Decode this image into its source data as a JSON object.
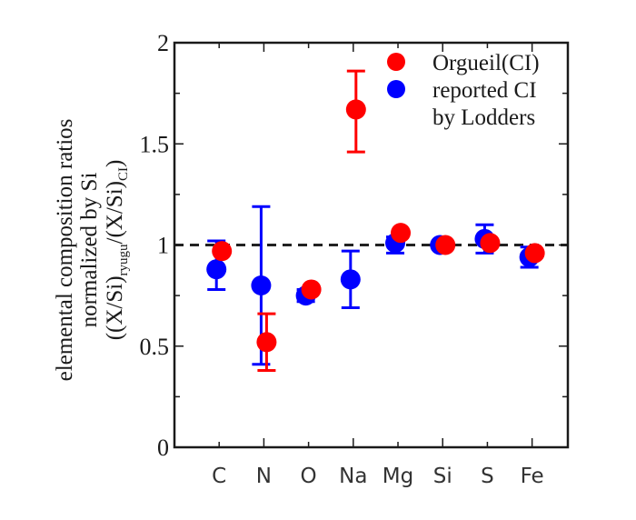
{
  "chart_data": {
    "type": "scatter",
    "title": "",
    "xlabel": "",
    "ylabel_lines": [
      "elemental composition ratios",
      "normalized by Si"
    ],
    "ylabel_formula": {
      "open": "((X/Si)",
      "sub1": "ryugu",
      "mid": "/(X/Si)",
      "sub2": "CI",
      "close": ")"
    },
    "categories": [
      "C",
      "N",
      "O",
      "Na",
      "Mg",
      "Si",
      "S",
      "Fe"
    ],
    "xlim": [
      0,
      8.8
    ],
    "ylim": [
      0,
      2
    ],
    "yticks": [
      0,
      0.5,
      1,
      1.5,
      2
    ],
    "ytick_labels": [
      "0",
      "0.5",
      "1",
      "1.5",
      "2"
    ],
    "yminor_step": 0.25,
    "reference_line": {
      "y": 1,
      "style": "dashed",
      "color": "#222222"
    },
    "grid": false,
    "legend_position": "top-right",
    "legend": [
      {
        "label": "Orgueil(CI)",
        "color": "#ff0000"
      },
      {
        "label": "reported CI",
        "label2": "by Lodders",
        "color": "#0000ff"
      }
    ],
    "series": [
      {
        "name": "reported CI by Lodders",
        "color": "#0000ff",
        "values": [
          0.88,
          0.8,
          0.75,
          0.83,
          1.01,
          1.0,
          1.03,
          0.94
        ],
        "err_low": [
          0.78,
          0.41,
          0.72,
          0.69,
          0.96,
          0.99,
          0.96,
          0.89
        ],
        "err_high": [
          1.02,
          1.19,
          0.78,
          0.97,
          1.04,
          1.01,
          1.1,
          0.99
        ]
      },
      {
        "name": "Orgueil(CI)",
        "color": "#ff0000",
        "values": [
          0.97,
          0.52,
          0.78,
          1.67,
          1.06,
          1.0,
          1.01,
          0.96
        ],
        "err_low": [
          null,
          0.38,
          null,
          1.46,
          null,
          null,
          null,
          null
        ],
        "err_high": [
          null,
          0.66,
          null,
          1.86,
          null,
          null,
          null,
          null
        ]
      }
    ]
  }
}
